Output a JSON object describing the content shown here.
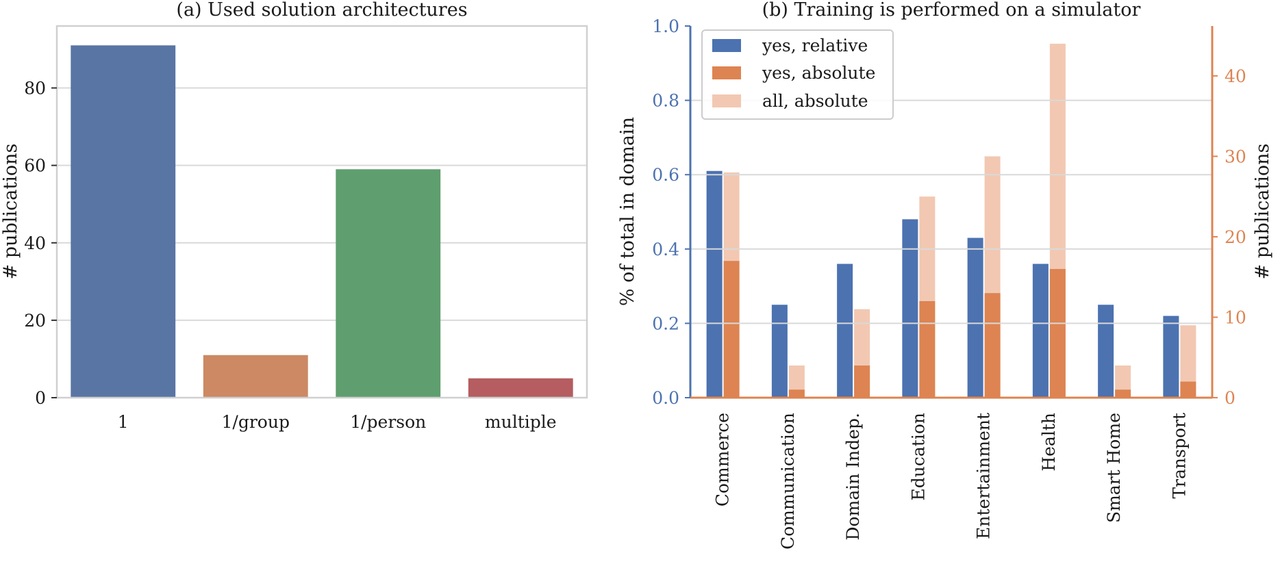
{
  "chart_data": [
    {
      "type": "bar",
      "title": "(a) Used solution architectures",
      "xlabel": "",
      "ylabel": "# publications",
      "ylim": [
        0,
        96
      ],
      "yticks": [
        0,
        20,
        40,
        60,
        80
      ],
      "grid": true,
      "categories": [
        "1",
        "1/group",
        "1/person",
        "multiple"
      ],
      "values": [
        91,
        11,
        59,
        5
      ],
      "colors": [
        "#5975a4",
        "#cc8963",
        "#5f9e6e",
        "#b55d60"
      ]
    },
    {
      "type": "bar",
      "title": "(b) Training is performed on a simulator",
      "xlabel": "",
      "ylabel_left": "% of total in domain",
      "ylabel_right": "# publications",
      "ylim_left": [
        0,
        1.0
      ],
      "ylim_right": [
        0,
        46.2
      ],
      "yticks_left": [
        "0.0",
        "0.2",
        "0.4",
        "0.6",
        "0.8",
        "1.0"
      ],
      "yticks_right": [
        0,
        10,
        20,
        30,
        40
      ],
      "grid": true,
      "legend_position": "top-left",
      "left_axis_color": "#4c72b0",
      "right_axis_color": "#dd8452",
      "categories": [
        "Commerce",
        "Communication",
        "Domain Indep.",
        "Education",
        "Entertainment",
        "Health",
        "Smart Home",
        "Transport"
      ],
      "series": [
        {
          "name": "yes, relative",
          "axis": "left",
          "color": "#4c72b0",
          "values": [
            0.61,
            0.25,
            0.36,
            0.48,
            0.43,
            0.36,
            0.25,
            0.22
          ]
        },
        {
          "name": "yes, absolute",
          "axis": "right",
          "color": "#dd8452",
          "values": [
            17,
            1,
            4,
            12,
            13,
            16,
            1,
            2
          ]
        },
        {
          "name": "all, absolute",
          "axis": "right",
          "color": "#f2c8b2",
          "values": [
            28,
            4,
            11,
            25,
            30,
            44,
            4,
            9
          ]
        }
      ]
    }
  ]
}
